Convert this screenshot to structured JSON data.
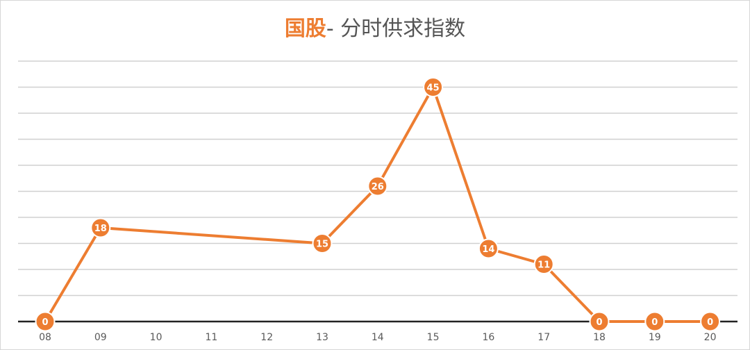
{
  "chart_data": {
    "type": "line",
    "title_accent": "国股",
    "title_rest": "- 分时供求指数",
    "categories": [
      "08",
      "09",
      "10",
      "11",
      "12",
      "13",
      "14",
      "15",
      "16",
      "17",
      "18",
      "19",
      "20"
    ],
    "series": [
      {
        "points": [
          {
            "x": "08",
            "y": 0
          },
          {
            "x": "09",
            "y": 18
          },
          {
            "x": "13",
            "y": 15
          },
          {
            "x": "14",
            "y": 26
          },
          {
            "x": "15",
            "y": 45
          },
          {
            "x": "16",
            "y": 14
          },
          {
            "x": "17",
            "y": 11
          },
          {
            "x": "18",
            "y": 0
          },
          {
            "x": "19",
            "y": 0
          },
          {
            "x": "20",
            "y": 0
          }
        ]
      }
    ],
    "ylim": [
      0,
      50
    ],
    "ygrid_step": 5,
    "grid": true,
    "legend": "none",
    "color": "#ED7D31"
  }
}
